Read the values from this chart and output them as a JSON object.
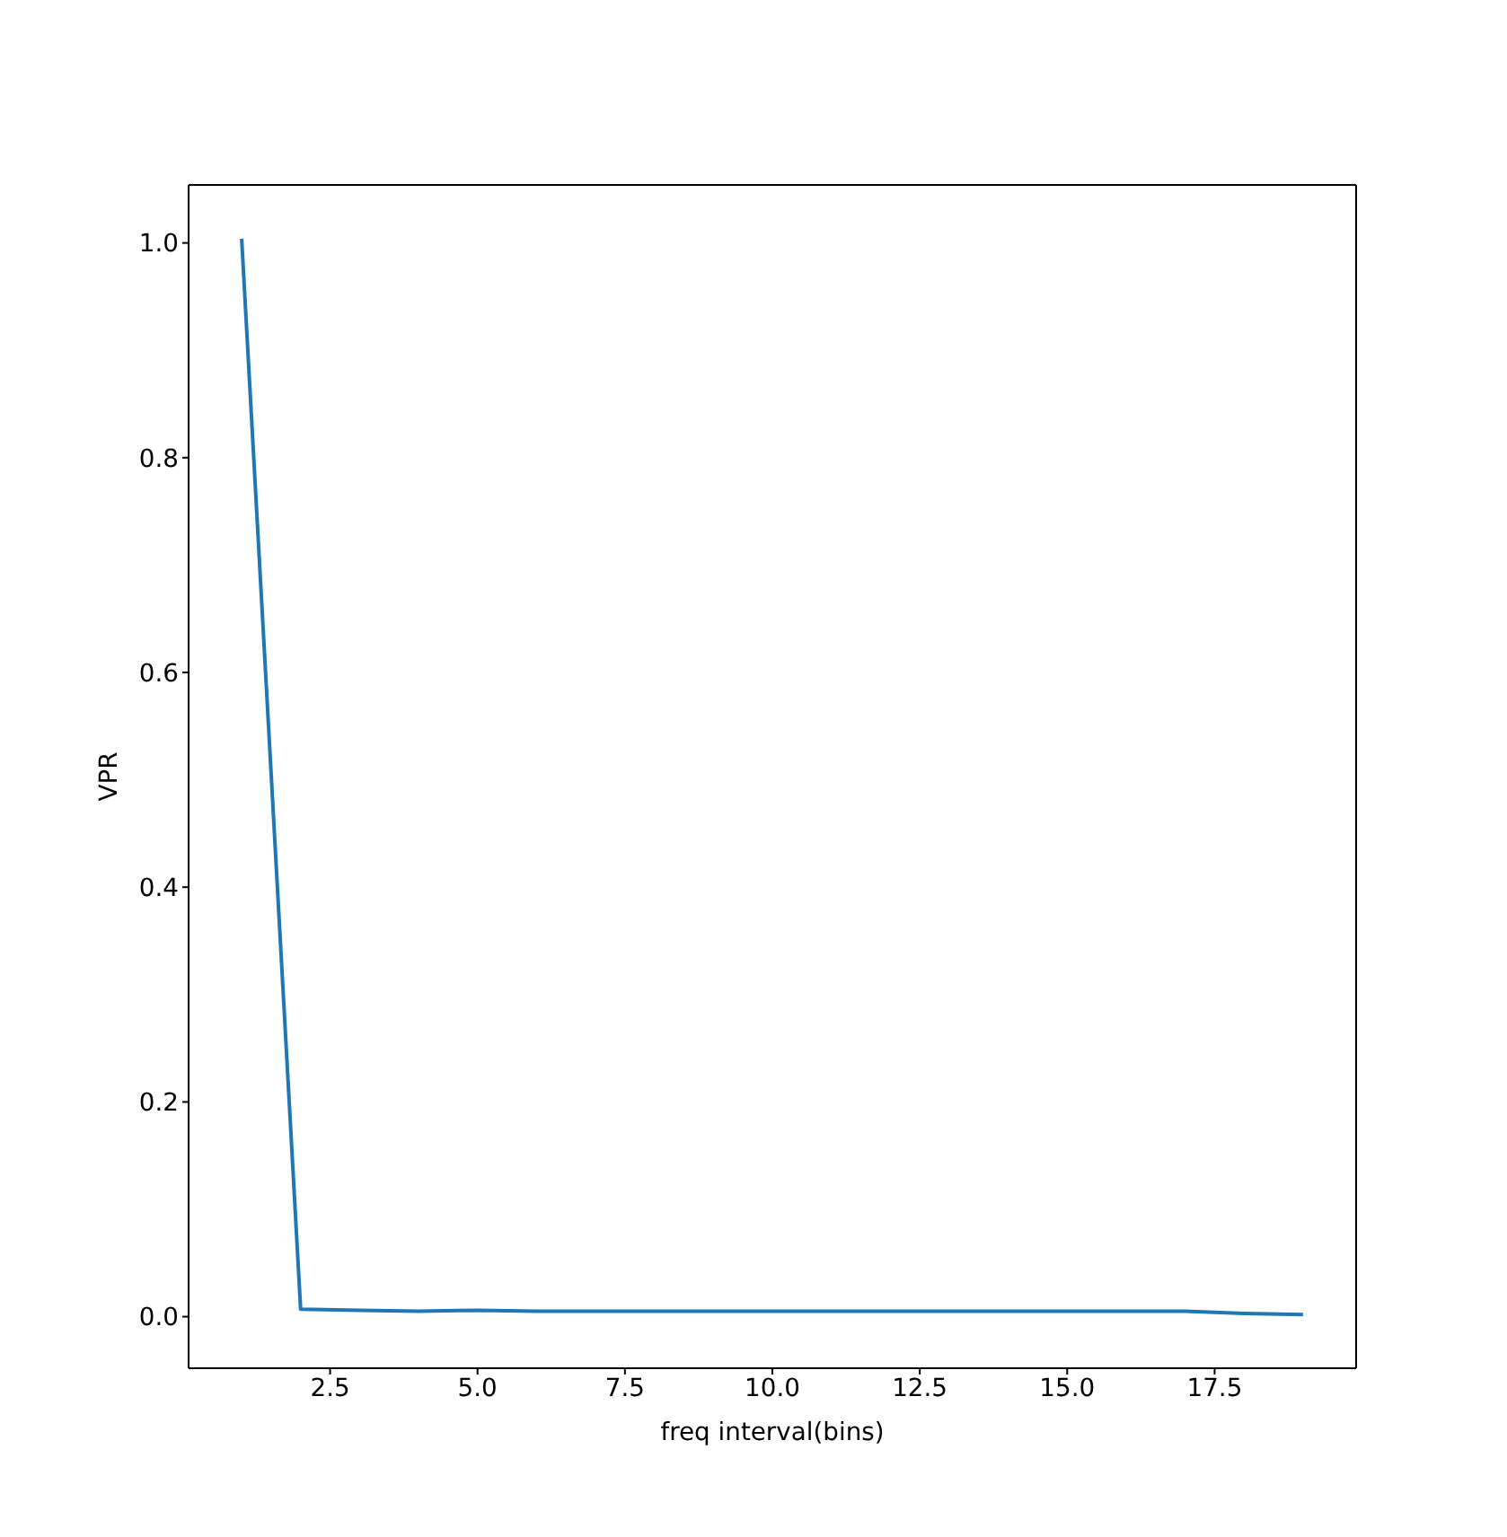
{
  "chart_data": {
    "type": "line",
    "xlabel": "freq interval(bins)",
    "ylabel": "VPR",
    "x": [
      1,
      2,
      3,
      4,
      5,
      6,
      7,
      8,
      9,
      10,
      11,
      12,
      13,
      14,
      15,
      16,
      17,
      18,
      19
    ],
    "series": [
      {
        "color": "#1f77b4",
        "values": [
          1.004,
          0.007,
          0.006,
          0.005,
          0.006,
          0.005,
          0.005,
          0.005,
          0.005,
          0.005,
          0.005,
          0.005,
          0.005,
          0.005,
          0.005,
          0.005,
          0.005,
          0.003,
          0.002
        ]
      }
    ],
    "xlim": [
      0.1,
      19.9
    ],
    "ylim": [
      -0.048,
      1.054
    ],
    "xticks": [
      2.5,
      {
        "value": 5,
        "label": "5.0"
      },
      7.5,
      {
        "value": 10,
        "label": "10.0"
      },
      12.5,
      {
        "value": 15,
        "label": "15.0"
      },
      17.5
    ],
    "yticks": [
      {
        "value": 0,
        "label": "0.0"
      },
      {
        "value": 0.2,
        "label": "0.2"
      },
      {
        "value": 0.4,
        "label": "0.4"
      },
      {
        "value": 0.6,
        "label": "0.6"
      },
      {
        "value": 0.8,
        "label": "0.8"
      },
      {
        "value": 1,
        "label": "1.0"
      }
    ],
    "line_style": "solid"
  }
}
